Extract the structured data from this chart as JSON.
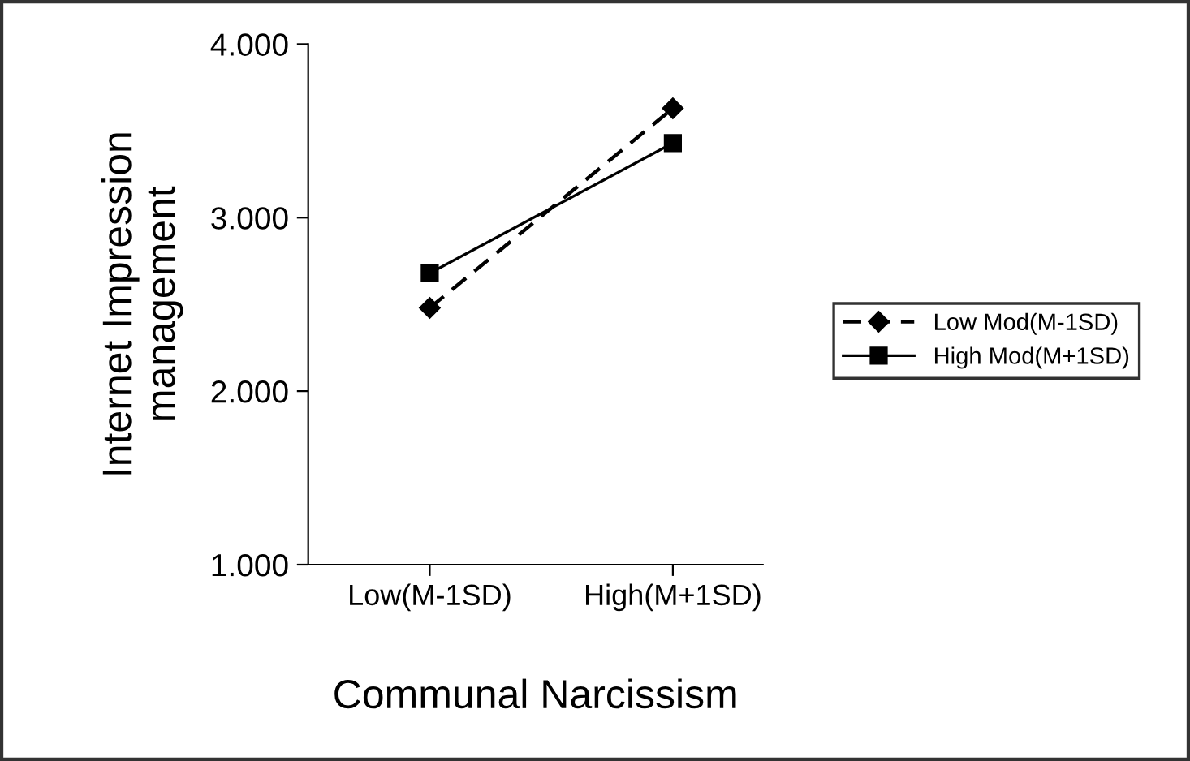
{
  "chart_data": {
    "type": "line",
    "xlabel": "Communal Narcissism",
    "ylabel": "Internet Impression\nmanagement",
    "categories": [
      "Low(M-1SD)",
      "High(M+1SD)"
    ],
    "series": [
      {
        "name": "Low Mod(M-1SD)",
        "color": "#000000",
        "values": [
          2.48,
          3.63
        ],
        "marker": "diamond",
        "line_style": "dashed"
      },
      {
        "name": "High Mod(M+1SD)",
        "color": "#000000",
        "values": [
          2.68,
          3.43
        ],
        "marker": "square",
        "line_style": "solid"
      }
    ],
    "ylim": [
      1,
      4
    ],
    "yticks": [
      {
        "value": 1,
        "label": "1.000"
      },
      {
        "value": 2,
        "label": "2.000"
      },
      {
        "value": 3,
        "label": "3.000"
      },
      {
        "value": 4,
        "label": "4.000"
      }
    ],
    "grid": false,
    "legend": "right"
  }
}
